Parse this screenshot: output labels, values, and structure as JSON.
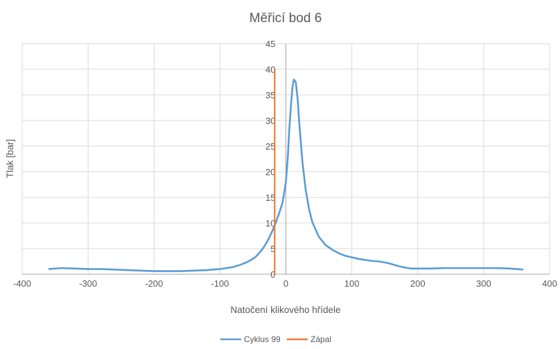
{
  "chart_data": {
    "type": "line",
    "title": "Měřicí bod 6",
    "xlabel": "Natočení klikového hřídele",
    "ylabel": "Tlak [bar]",
    "xlim": [
      -400,
      400
    ],
    "ylim": [
      0,
      45
    ],
    "x_ticks": [
      -400,
      -300,
      -200,
      -100,
      0,
      100,
      200,
      300,
      400
    ],
    "y_ticks": [
      0,
      5,
      10,
      15,
      20,
      25,
      30,
      35,
      40,
      45
    ],
    "grid": true,
    "legend_position": "bottom",
    "series": [
      {
        "name": "Cyklus 99",
        "color": "#5b9bd5",
        "x": [
          -360,
          -350,
          -340,
          -320,
          -300,
          -280,
          -260,
          -240,
          -220,
          -200,
          -180,
          -160,
          -140,
          -120,
          -100,
          -90,
          -80,
          -70,
          -60,
          -50,
          -45,
          -40,
          -35,
          -30,
          -25,
          -20,
          -15,
          -10,
          -5,
          0,
          3,
          5,
          8,
          10,
          12,
          15,
          18,
          20,
          25,
          30,
          35,
          40,
          50,
          60,
          70,
          80,
          90,
          100,
          110,
          120,
          130,
          140,
          150,
          160,
          170,
          180,
          190,
          200,
          220,
          240,
          260,
          280,
          300,
          320,
          340,
          350,
          360
        ],
        "y": [
          1.0,
          1.1,
          1.2,
          1.1,
          1.0,
          1.0,
          0.9,
          0.8,
          0.7,
          0.6,
          0.6,
          0.6,
          0.7,
          0.8,
          1.0,
          1.2,
          1.4,
          1.8,
          2.3,
          3.0,
          3.5,
          4.2,
          5.0,
          6.0,
          7.2,
          8.6,
          10.2,
          12.0,
          14.0,
          18.0,
          23.0,
          28.0,
          33.5,
          36.5,
          38.0,
          37.5,
          34.0,
          30.0,
          22.0,
          16.5,
          12.8,
          10.2,
          7.3,
          5.7,
          4.8,
          4.1,
          3.6,
          3.3,
          3.0,
          2.8,
          2.6,
          2.5,
          2.3,
          2.0,
          1.6,
          1.3,
          1.1,
          1.1,
          1.1,
          1.2,
          1.2,
          1.2,
          1.2,
          1.2,
          1.1,
          1.0,
          0.9
        ]
      },
      {
        "name": "Zápal",
        "color": "#ed7d31",
        "x": [
          -17,
          -17
        ],
        "y": [
          0,
          40
        ]
      }
    ]
  }
}
